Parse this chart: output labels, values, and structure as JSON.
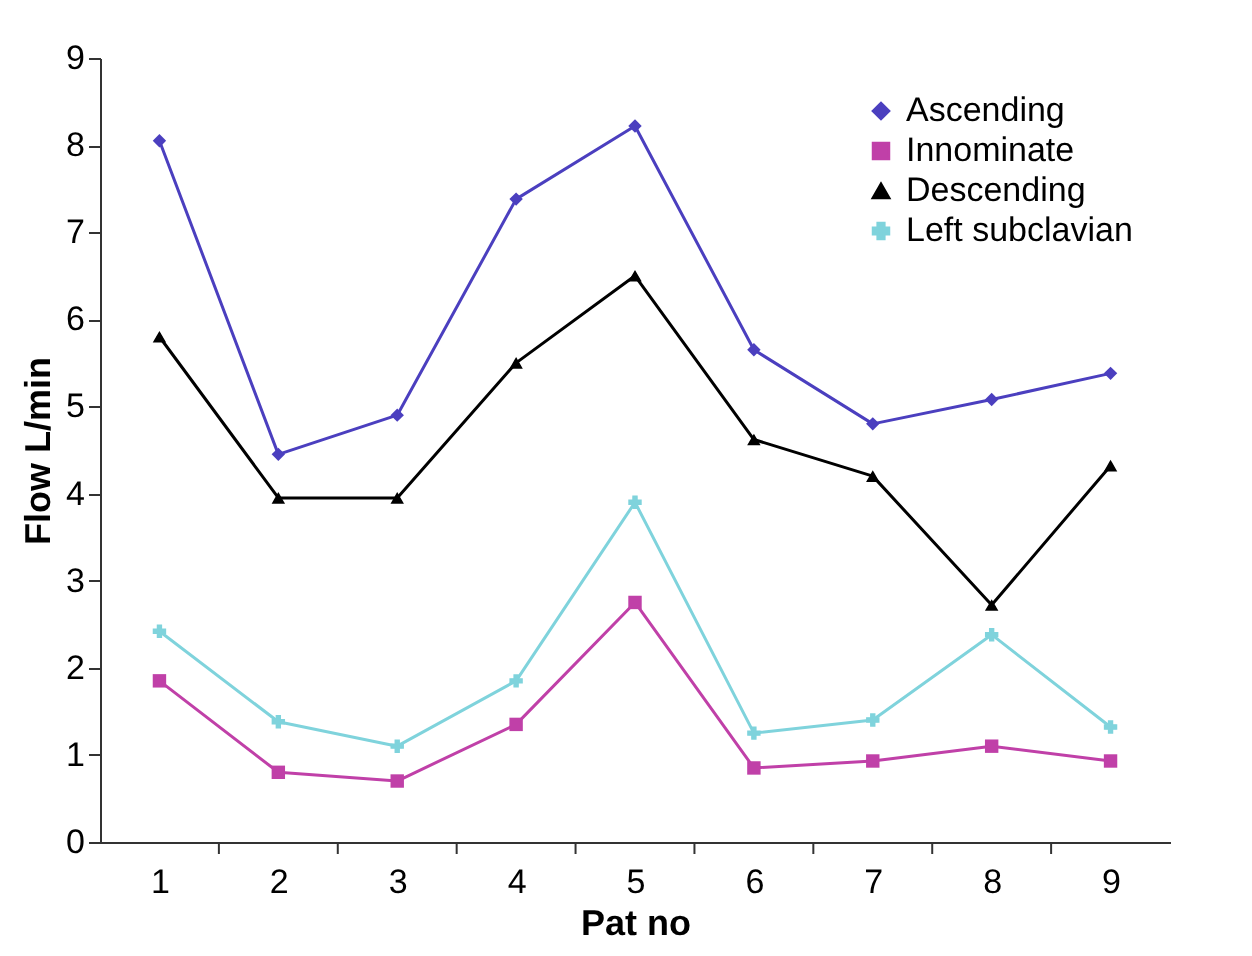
{
  "chart_data": {
    "type": "line",
    "xlabel": "Pat no",
    "ylabel": "Flow L/min",
    "categories": [
      "1",
      "2",
      "3",
      "4",
      "5",
      "6",
      "7",
      "8",
      "9"
    ],
    "ylim": [
      0,
      9
    ],
    "yticks": [
      0,
      1,
      2,
      3,
      4,
      5,
      6,
      7,
      8,
      9
    ],
    "grid": false,
    "legend": "top right",
    "line_style": "solid",
    "series": [
      {
        "name": "Ascending",
        "color": "#4b3fbf",
        "marker": "diamond",
        "values": [
          8.05,
          4.45,
          4.9,
          7.38,
          8.22,
          5.65,
          4.8,
          5.08,
          5.38
        ]
      },
      {
        "name": "Innominate",
        "color": "#c040a8",
        "marker": "square",
        "values": [
          1.85,
          0.8,
          0.7,
          1.35,
          2.75,
          0.85,
          0.93,
          1.1,
          0.93
        ]
      },
      {
        "name": "Descending",
        "color": "#000000",
        "marker": "triangle",
        "values": [
          5.8,
          3.95,
          3.95,
          5.5,
          6.5,
          4.62,
          4.2,
          2.72,
          4.32
        ]
      },
      {
        "name": "Left subclavian",
        "color": "#7fd3dc",
        "marker": "cross",
        "values": [
          2.42,
          1.38,
          1.1,
          1.85,
          3.9,
          1.25,
          1.4,
          2.38,
          1.32
        ]
      }
    ]
  }
}
